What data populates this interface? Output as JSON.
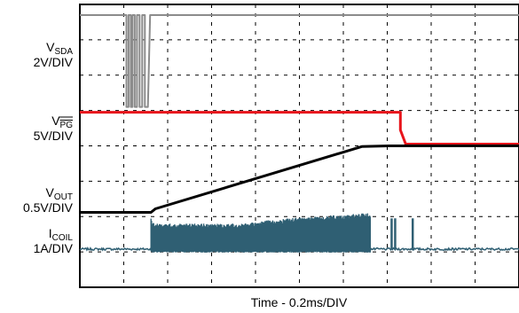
{
  "chart_data": {
    "type": "line",
    "xlabel": "Time - 0.2ms/DIV",
    "x_divisions": 10,
    "y_divisions": 8,
    "grid": true,
    "channels": [
      {
        "base": "V",
        "sub": "SDA",
        "overline": false,
        "scale": "2V/DIV",
        "color": "#8c8c8c"
      },
      {
        "base": "V",
        "sub": "PG",
        "overline": true,
        "scale": "5V/DIV",
        "color": "#e8141b"
      },
      {
        "base": "V",
        "sub": "OUT",
        "overline": false,
        "scale": "0.5V/DIV",
        "color": "#000000"
      },
      {
        "base": "I",
        "sub": "COIL",
        "overline": false,
        "scale": "1A/DIV",
        "color": "#2f5f73"
      }
    ],
    "series": [
      {
        "name": "VSDA",
        "color": "#8c8c8c",
        "x": [
          0,
          1.01,
          1.06,
          1.06,
          1.11,
          1.11,
          1.16,
          1.16,
          1.2,
          1.2,
          1.25,
          1.25,
          1.3,
          1.3,
          1.36,
          1.36,
          1.42,
          1.42,
          1.48,
          1.48,
          1.55,
          1.6,
          10
        ],
        "y": [
          7.7,
          7.7,
          7.7,
          5.1,
          5.1,
          7.7,
          7.7,
          5.1,
          5.1,
          7.7,
          7.7,
          5.1,
          5.1,
          7.7,
          7.7,
          5.1,
          5.1,
          7.7,
          7.7,
          5.1,
          5.1,
          7.7,
          7.7
        ]
      },
      {
        "name": "VPG",
        "color": "#e8141b",
        "x": [
          0,
          7.3,
          7.3,
          7.42,
          10
        ],
        "y": [
          4.95,
          4.95,
          4.45,
          4.05,
          4.05
        ]
      },
      {
        "name": "VOUT",
        "color": "#000000",
        "x": [
          0,
          1.62,
          1.72,
          6.42,
          7.05,
          10
        ],
        "y": [
          2.12,
          2.12,
          2.22,
          3.98,
          4.0,
          4.0
        ]
      },
      {
        "name": "ICOIL",
        "color": "#2f5f73",
        "x_noise_end": 10,
        "baseline": 1.08,
        "burst": {
          "x_start": 1.62,
          "x_end": 6.62,
          "envelope_x": [
            1.62,
            1.7,
            3.5,
            5.0,
            6.62
          ],
          "envelope_y": [
            1.95,
            1.8,
            1.8,
            1.98,
            2.1
          ]
        },
        "spikes": [
          {
            "x": 7.1,
            "y": 1.95
          },
          {
            "x": 7.18,
            "y": 1.95
          },
          {
            "x": 7.58,
            "y": 1.95
          }
        ]
      }
    ]
  }
}
